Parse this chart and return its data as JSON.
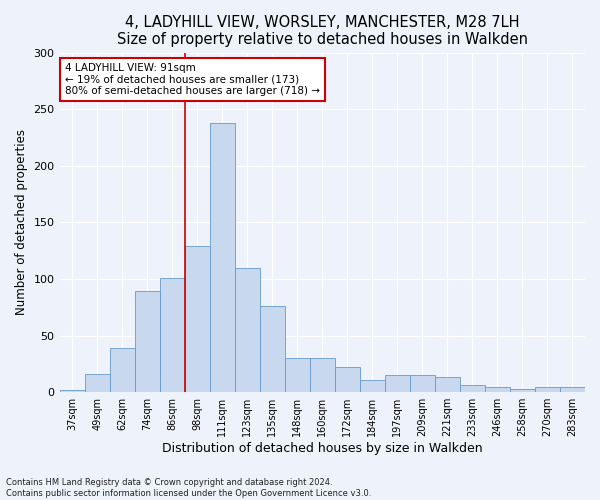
{
  "title1": "4, LADYHILL VIEW, WORSLEY, MANCHESTER, M28 7LH",
  "title2": "Size of property relative to detached houses in Walkden",
  "xlabel": "Distribution of detached houses by size in Walkden",
  "ylabel": "Number of detached properties",
  "categories": [
    "37sqm",
    "49sqm",
    "62sqm",
    "74sqm",
    "86sqm",
    "98sqm",
    "111sqm",
    "123sqm",
    "135sqm",
    "148sqm",
    "160sqm",
    "172sqm",
    "184sqm",
    "197sqm",
    "209sqm",
    "221sqm",
    "233sqm",
    "246sqm",
    "258sqm",
    "270sqm",
    "283sqm"
  ],
  "values": [
    2,
    16,
    39,
    89,
    101,
    129,
    238,
    110,
    76,
    30,
    30,
    22,
    11,
    15,
    15,
    13,
    6,
    5,
    3,
    5,
    5
  ],
  "bar_color": "#c8d8ef",
  "bar_edge_color": "#6699cc",
  "vline_x_idx": 4.5,
  "vline_color": "#cc0000",
  "annotation_line1": "4 LADYHILL VIEW: 91sqm",
  "annotation_line2": "← 19% of detached houses are smaller (173)",
  "annotation_line3": "80% of semi-detached houses are larger (718) →",
  "annotation_box_color": "#ffffff",
  "annotation_box_edge": "#cc0000",
  "footer": "Contains HM Land Registry data © Crown copyright and database right 2024.\nContains public sector information licensed under the Open Government Licence v3.0.",
  "ylim": [
    0,
    300
  ],
  "background_color": "#eef2fb",
  "grid_color": "#ffffff",
  "title1_fontsize": 10.5,
  "title2_fontsize": 9.5,
  "xlabel_fontsize": 9,
  "ylabel_fontsize": 8.5,
  "tick_fontsize": 7,
  "annotation_fontsize": 7.5,
  "footer_fontsize": 6
}
